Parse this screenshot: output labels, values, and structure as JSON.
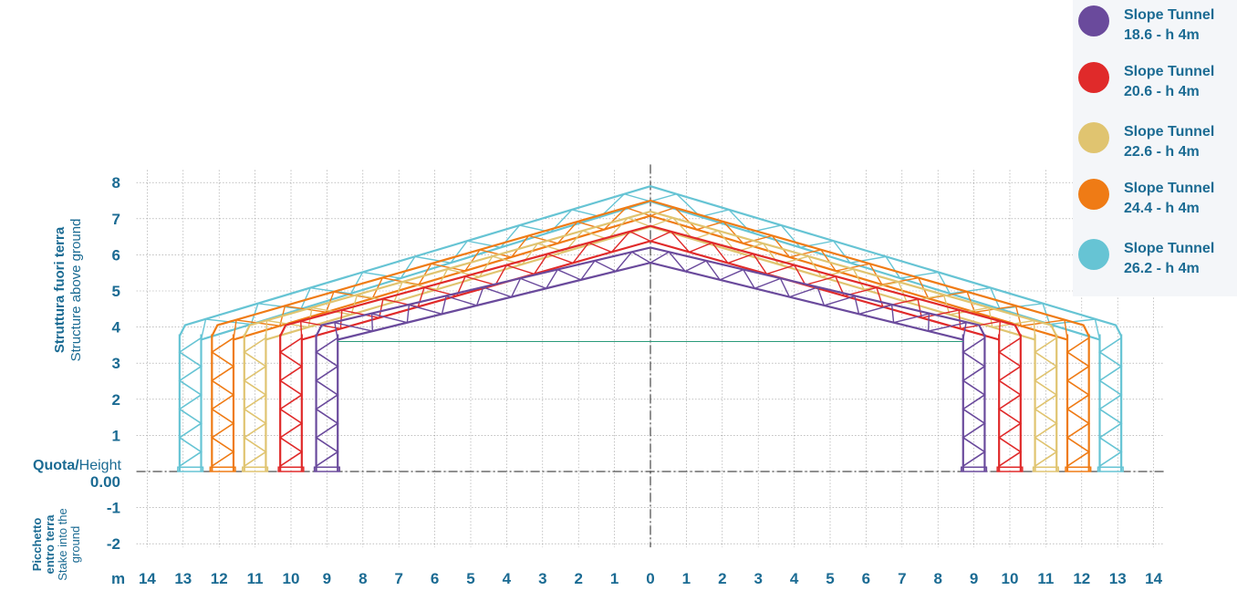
{
  "legend": [
    {
      "line1": "Slope Tunnel",
      "line2": "18.6 - h 4m",
      "color": "#6a4a9c"
    },
    {
      "line1": "Slope Tunnel",
      "line2": "20.6 - h 4m",
      "color": "#e02a2a"
    },
    {
      "line1": "Slope Tunnel",
      "line2": "22.6 - h 4m",
      "color": "#e0c470"
    },
    {
      "line1": "Slope Tunnel",
      "line2": "24.4 - h 4m",
      "color": "#ef7b15"
    },
    {
      "line1": "Slope Tunnel",
      "line2": "26.2 - h 4m",
      "color": "#66c4d4"
    }
  ],
  "y_axis": {
    "above_bold": "Struttura fuori terra",
    "above_light": "Structure above ground",
    "below_bold_1": "Picchetto",
    "below_bold_2": "entro terra",
    "below_light_1": "Stake into the",
    "below_light_2": "ground",
    "height_bold": "Quota/",
    "height_light": "Height",
    "zero_label": "0.00",
    "ticks": [
      "8",
      "7",
      "6",
      "5",
      "4",
      "3",
      "2",
      "1",
      "-1",
      "-2"
    ]
  },
  "x_axis": {
    "unit": "m",
    "ticks": [
      "14",
      "13",
      "12",
      "11",
      "10",
      "9",
      "8",
      "7",
      "6",
      "5",
      "4",
      "3",
      "2",
      "1",
      "0",
      "1",
      "2",
      "3",
      "4",
      "5",
      "6",
      "7",
      "8",
      "9",
      "10",
      "11",
      "12",
      "13",
      "14"
    ]
  },
  "chart_data": {
    "type": "diagram",
    "structures": [
      {
        "name": "Slope Tunnel 18.6 - h 4m",
        "width": 18.6,
        "eave_height": 4,
        "ridge_height": 6.2,
        "color": "#6a4a9c"
      },
      {
        "name": "Slope Tunnel 20.6 - h 4m",
        "width": 20.6,
        "eave_height": 4,
        "ridge_height": 6.8,
        "color": "#e02a2a"
      },
      {
        "name": "Slope Tunnel 22.6 - h 4m",
        "width": 22.6,
        "eave_height": 4,
        "ridge_height": 7.2,
        "color": "#e0c470"
      },
      {
        "name": "Slope Tunnel 24.4 - h 4m",
        "width": 24.4,
        "eave_height": 4,
        "ridge_height": 7.5,
        "color": "#ef7b15"
      },
      {
        "name": "Slope Tunnel 26.2 - h 4m",
        "width": 26.2,
        "eave_height": 4,
        "ridge_height": 7.9,
        "color": "#66c4d4"
      }
    ],
    "xlim": [
      -14,
      14
    ],
    "ylim": [
      -2,
      8
    ],
    "grid": true
  }
}
